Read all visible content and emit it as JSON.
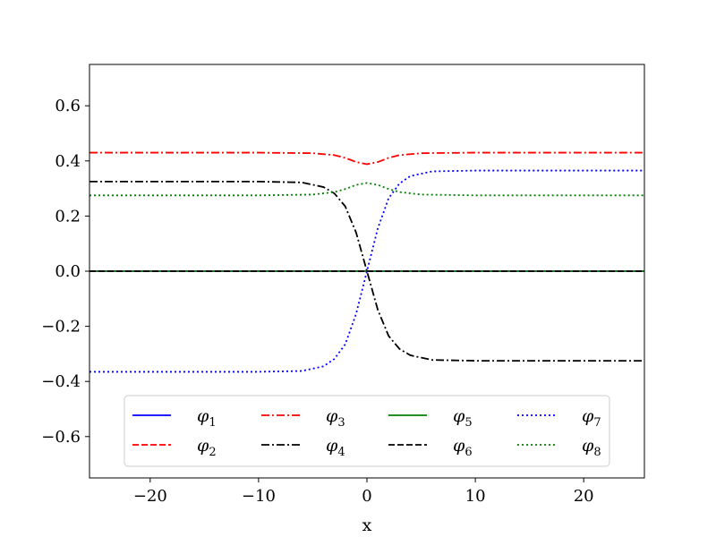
{
  "chart_data": {
    "type": "line",
    "xlabel": "x",
    "xlim": [
      -25.6,
      25.6
    ],
    "ylim": [
      -0.75,
      0.75
    ],
    "xticks": [
      -20,
      -10,
      0,
      10,
      20
    ],
    "yticks": [
      -0.6,
      -0.4,
      -0.2,
      0.0,
      0.2,
      0.4,
      0.6
    ],
    "xtick_labels": [
      "−20",
      "−10",
      "0",
      "10",
      "20"
    ],
    "ytick_labels": [
      "−0.6",
      "−0.4",
      "−0.2",
      "0.0",
      "0.2",
      "0.4",
      "0.6"
    ],
    "grid": false,
    "legend_position": "lower-center",
    "legend_columns": 4,
    "series": [
      {
        "name": "φ1",
        "color": "#0000ff",
        "style": "solid",
        "x": [
          -25.6,
          25.6
        ],
        "y": [
          0.0,
          0.0
        ]
      },
      {
        "name": "φ2",
        "color": "#ff0000",
        "style": "dashed",
        "x": [
          -25.6,
          25.6
        ],
        "y": [
          0.0,
          0.0
        ]
      },
      {
        "name": "φ3",
        "color": "#ff0000",
        "style": "dashdot",
        "x": [
          -25.6,
          -10,
          -5,
          -3,
          -2,
          -1,
          0,
          1,
          2,
          3,
          5,
          10,
          25.6
        ],
        "y": [
          0.43,
          0.43,
          0.428,
          0.421,
          0.411,
          0.396,
          0.388,
          0.396,
          0.411,
          0.421,
          0.428,
          0.43,
          0.43
        ]
      },
      {
        "name": "φ4",
        "color": "#000000",
        "style": "dashdot",
        "x": [
          -25.6,
          -10,
          -6,
          -4,
          -3,
          -2,
          -1,
          0,
          1,
          2,
          3,
          4,
          6,
          10,
          25.6
        ],
        "y": [
          0.325,
          0.325,
          0.322,
          0.305,
          0.282,
          0.235,
          0.14,
          0.0,
          -0.14,
          -0.235,
          -0.282,
          -0.305,
          -0.322,
          -0.325,
          -0.325
        ]
      },
      {
        "name": "φ5",
        "color": "#008000",
        "style": "solid",
        "x": [
          -25.6,
          25.6
        ],
        "y": [
          0.0,
          0.0
        ]
      },
      {
        "name": "φ6",
        "color": "#000000",
        "style": "dashed",
        "x": [
          -25.6,
          25.6
        ],
        "y": [
          0.0,
          0.0
        ]
      },
      {
        "name": "φ7",
        "color": "#0000ff",
        "style": "dotted",
        "x": [
          -25.6,
          -10,
          -6,
          -4,
          -3,
          -2,
          -1,
          0,
          1,
          2,
          3,
          4,
          6,
          10,
          25.6
        ],
        "y": [
          -0.365,
          -0.365,
          -0.362,
          -0.345,
          -0.318,
          -0.265,
          -0.155,
          0.0,
          0.155,
          0.265,
          0.318,
          0.345,
          0.362,
          0.365,
          0.365
        ]
      },
      {
        "name": "φ8",
        "color": "#008000",
        "style": "dotted",
        "x": [
          -25.6,
          -10,
          -5,
          -3,
          -2,
          -1,
          0,
          1,
          2,
          3,
          5,
          10,
          25.6
        ],
        "y": [
          0.275,
          0.275,
          0.278,
          0.287,
          0.298,
          0.313,
          0.32,
          0.313,
          0.298,
          0.287,
          0.278,
          0.275,
          0.275
        ]
      }
    ]
  }
}
